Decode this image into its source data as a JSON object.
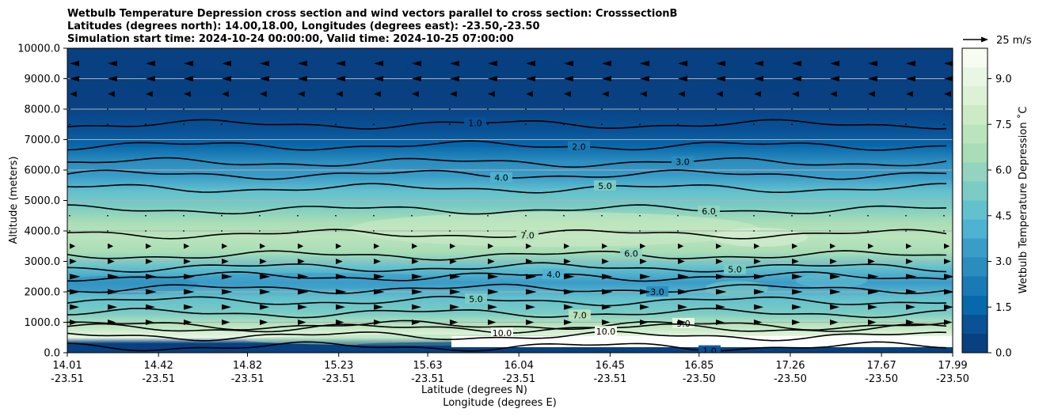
{
  "chart_data": {
    "type": "heatmap",
    "title_lines": [
      "Wetbulb Temperature Depression cross section and wind vectors parallel to cross section: CrosssectionB",
      "Latitudes (degrees north): 14.00,18.00, Longitudes (degrees east): -23.50,-23.50",
      "Simulation start time: 2024-10-24 00:00:00, Valid time: 2024-10-25 07:00:00"
    ],
    "ylabel": "Altitude (meters)",
    "xlabel_lat": "Latitude (degrees N)",
    "xlabel_lon": "Longitude (degrees E)",
    "ylim": [
      0,
      10000
    ],
    "y_ticks": [
      "0.0",
      "1000.0",
      "2000.0",
      "3000.0",
      "4000.0",
      "5000.0",
      "6000.0",
      "7000.0",
      "8000.0",
      "9000.0",
      "10000.0"
    ],
    "x_ticks": [
      {
        "lat": "14.01",
        "lon": "-23.51"
      },
      {
        "lat": "14.42",
        "lon": "-23.51"
      },
      {
        "lat": "14.82",
        "lon": "-23.51"
      },
      {
        "lat": "15.23",
        "lon": "-23.51"
      },
      {
        "lat": "15.63",
        "lon": "-23.51"
      },
      {
        "lat": "16.04",
        "lon": "-23.51"
      },
      {
        "lat": "16.45",
        "lon": "-23.51"
      },
      {
        "lat": "16.85",
        "lon": "-23.50"
      },
      {
        "lat": "17.26",
        "lon": "-23.50"
      },
      {
        "lat": "17.67",
        "lon": "-23.50"
      },
      {
        "lat": "17.99",
        "lon": "-23.50"
      }
    ],
    "grid": "horizontal",
    "colorbar": {
      "label": "Wetbulb Temperature Depression ˚C",
      "ticks": [
        "0.0",
        "1.5",
        "3.0",
        "4.5",
        "6.0",
        "7.5",
        "9.0"
      ],
      "range": [
        0,
        10
      ],
      "colors": [
        "#084081",
        "#0a5196",
        "#0868ac",
        "#1a7ab6",
        "#2b8cbe",
        "#3a9cc8",
        "#4eb3d3",
        "#63c0cd",
        "#7bccc4",
        "#92d4bf",
        "#a8ddb5",
        "#bae4bc",
        "#ccebc5",
        "#dcf1d6",
        "#e9f6e3",
        "#f7fcf0"
      ]
    },
    "wind_key": "25 m/s",
    "profile": [
      {
        "alt": 0,
        "value": 0.5
      },
      {
        "alt": 300,
        "value": 0.6
      },
      {
        "alt": 500,
        "value": 9.0
      },
      {
        "alt": 900,
        "value": 7.0
      },
      {
        "alt": 1300,
        "value": 5.5
      },
      {
        "alt": 1800,
        "value": 4.5
      },
      {
        "alt": 2300,
        "value": 3.5
      },
      {
        "alt": 2800,
        "value": 4.5
      },
      {
        "alt": 3300,
        "value": 6.5
      },
      {
        "alt": 3800,
        "value": 7.3
      },
      {
        "alt": 4300,
        "value": 6.8
      },
      {
        "alt": 4800,
        "value": 5.6
      },
      {
        "alt": 5300,
        "value": 4.5
      },
      {
        "alt": 5800,
        "value": 3.6
      },
      {
        "alt": 6300,
        "value": 2.7
      },
      {
        "alt": 6800,
        "value": 1.8
      },
      {
        "alt": 7300,
        "value": 1.0
      },
      {
        "alt": 8200,
        "value": 0.6
      },
      {
        "alt": 10000,
        "value": 0.5
      }
    ],
    "contours": [
      {
        "level": 1.0,
        "altitude": 7500,
        "label": "1.0"
      },
      {
        "level": 2.0,
        "altitude": 6800,
        "label": "2.0"
      },
      {
        "level": 3.0,
        "altitude": 6250,
        "label": "3.0"
      },
      {
        "level": 4.0,
        "altitude": 5850,
        "label": "4.0"
      },
      {
        "level": 5.0,
        "altitude": 5400,
        "label": "5.0"
      },
      {
        "level": 6.0,
        "altitude": 4700,
        "label": "6.0"
      },
      {
        "level": 7.0,
        "altitude": 3900,
        "label": "7.0"
      },
      {
        "level": 6.0,
        "altitude": 3200,
        "label": "6.0"
      },
      {
        "level": 5.0,
        "altitude": 2800,
        "label": "5.0"
      },
      {
        "level": 4.0,
        "altitude": 2500,
        "label": "4.0"
      },
      {
        "level": 3.0,
        "altitude": 2100,
        "label": "3.0"
      },
      {
        "level": 5.0,
        "altitude": 1700,
        "label": "5.0"
      },
      {
        "level": 7.0,
        "altitude": 1300,
        "label": "7.0"
      },
      {
        "level": 9.0,
        "altitude": 900,
        "label": "9.0"
      },
      {
        "level": 10.0,
        "altitude": 800,
        "label": "10.0"
      },
      {
        "level": 10.0,
        "altitude": 550,
        "label": "10.0"
      },
      {
        "level": 1.0,
        "altitude": 200,
        "label": "1.0"
      }
    ],
    "wind_rows": [
      {
        "alt": 9500,
        "speed": 5
      },
      {
        "alt": 9000,
        "speed": 5
      },
      {
        "alt": 8500,
        "speed": 3
      },
      {
        "alt": 8000,
        "speed": 1
      },
      {
        "alt": 7500,
        "speed": 1
      },
      {
        "alt": 4500,
        "speed": 1
      },
      {
        "alt": 4000,
        "speed": 1
      },
      {
        "alt": 3500,
        "speed": 2
      },
      {
        "alt": 3000,
        "speed": 3
      },
      {
        "alt": 2500,
        "speed": 6
      },
      {
        "alt": 2000,
        "speed": 6
      },
      {
        "alt": 1500,
        "speed": 5
      },
      {
        "alt": 1000,
        "speed": 4
      }
    ]
  }
}
